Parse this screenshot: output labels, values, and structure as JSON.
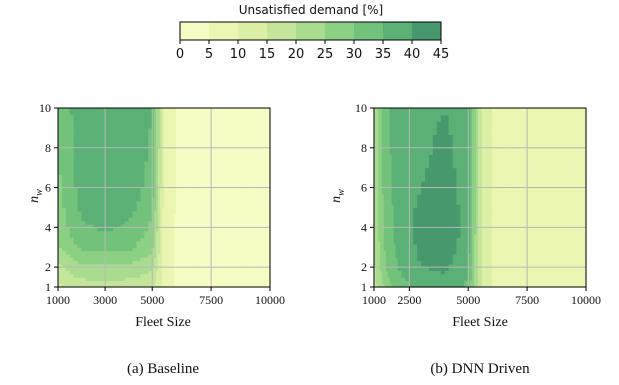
{
  "colorbar": {
    "label": "Unsatisfied demand [%]",
    "levels": [
      0,
      5,
      10,
      15,
      20,
      25,
      30,
      35,
      40,
      45
    ],
    "colors": [
      "#f7fbc4",
      "#eaf6b1",
      "#dbefa5",
      "#c5e69a",
      "#a9dc8e",
      "#8cd083",
      "#73c27b",
      "#5bb076",
      "#47996d"
    ]
  },
  "chart_data": [
    {
      "type": "heatmap",
      "caption": "(a)  Baseline",
      "xlabel": "Fleet Size",
      "ylabel_main": "n",
      "ylabel_sub": "w",
      "xlim": [
        1000,
        10000
      ],
      "ylim": [
        1,
        10
      ],
      "xticks": [
        1000,
        3000,
        5000,
        7500,
        10000
      ],
      "yticks": [
        1,
        2,
        4,
        6,
        8,
        10
      ],
      "x": [
        1000,
        2000,
        3000,
        4000,
        5000,
        5500,
        6000,
        7000,
        10000
      ],
      "y": [
        1,
        2,
        3,
        4,
        5,
        6,
        8,
        10
      ],
      "z": [
        [
          14,
          17,
          18,
          17,
          16,
          9,
          4,
          1,
          1
        ],
        [
          19,
          24,
          24,
          24,
          21,
          8,
          4,
          1,
          1
        ],
        [
          25,
          31,
          32,
          31,
          27,
          8,
          4,
          2,
          1
        ],
        [
          27,
          34,
          36,
          34,
          29,
          8,
          4,
          2,
          2
        ],
        [
          28,
          36,
          38,
          37,
          31,
          8,
          5,
          4,
          3
        ],
        [
          29,
          37,
          39,
          38,
          33,
          9,
          5,
          4,
          3
        ],
        [
          30,
          38,
          40,
          39,
          34,
          10,
          5,
          4,
          3
        ],
        [
          31,
          38,
          40,
          40,
          35,
          10,
          5,
          4,
          3
        ]
      ]
    },
    {
      "type": "heatmap",
      "caption": "(b)  DNN Driven",
      "xlabel": "Fleet Size",
      "ylabel_main": "n",
      "ylabel_sub": "w",
      "xlim": [
        1000,
        10000
      ],
      "ylim": [
        1,
        10
      ],
      "xticks": [
        1000,
        2500,
        5000,
        7500,
        10000
      ],
      "yticks": [
        1,
        2,
        4,
        6,
        8,
        10
      ],
      "x": [
        1000,
        1500,
        2000,
        3000,
        4000,
        5000,
        5500,
        6000,
        10000
      ],
      "y": [
        1,
        2,
        3,
        4,
        5,
        6,
        8,
        10
      ],
      "z": [
        [
          17,
          27,
          33,
          36,
          38,
          34,
          16,
          10,
          9
        ],
        [
          19,
          30,
          35,
          40,
          41,
          36,
          16,
          10,
          9
        ],
        [
          20,
          31,
          36,
          41,
          43,
          37,
          16,
          10,
          9
        ],
        [
          21,
          32,
          37,
          42,
          44,
          38,
          16,
          10,
          9
        ],
        [
          22,
          32,
          37,
          41,
          43,
          38,
          16,
          10,
          9
        ],
        [
          22,
          33,
          37,
          40,
          42,
          38,
          16,
          10,
          9
        ],
        [
          22,
          33,
          38,
          39,
          41,
          38,
          16,
          10,
          9
        ],
        [
          22,
          33,
          38,
          39,
          40,
          38,
          16,
          10,
          9
        ]
      ]
    }
  ]
}
